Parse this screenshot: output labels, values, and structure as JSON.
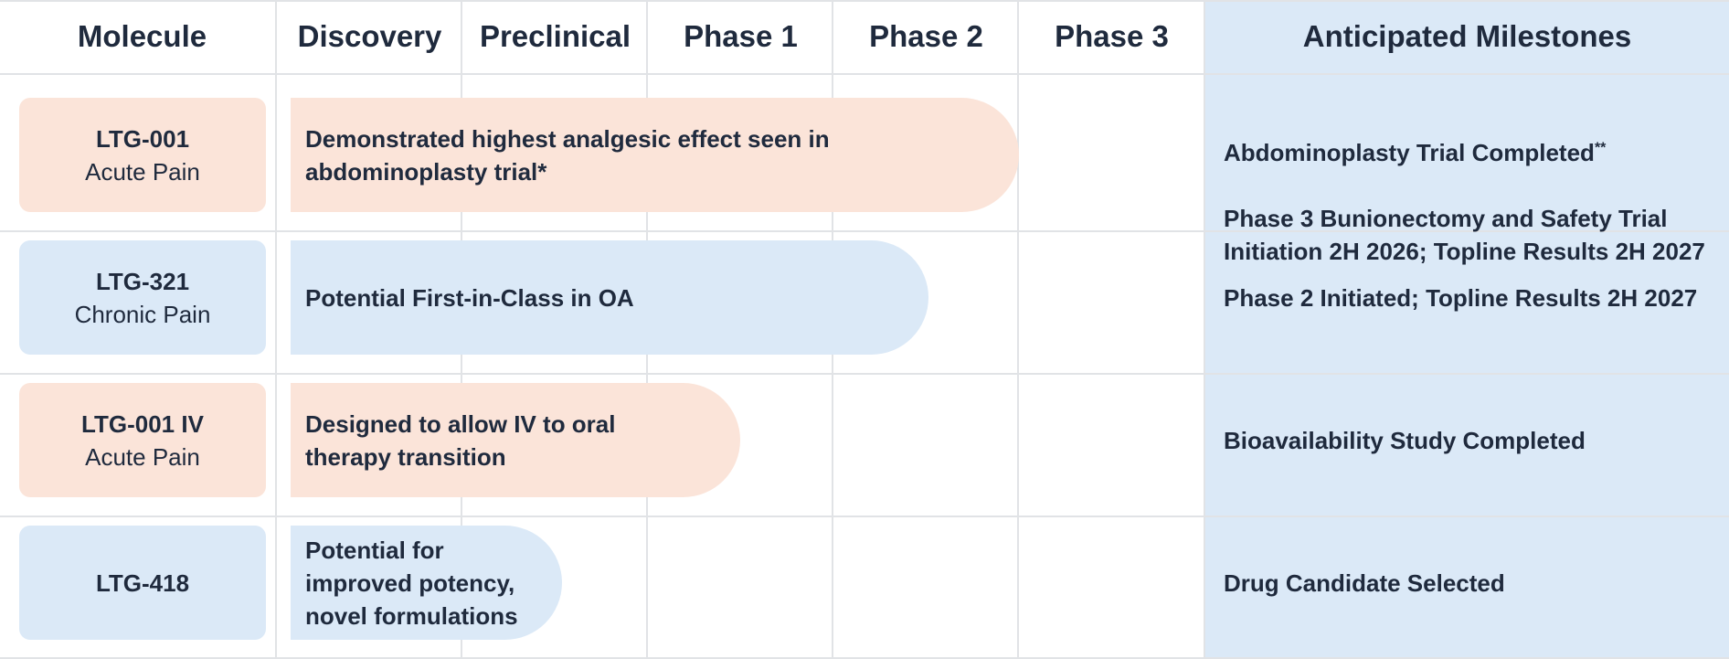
{
  "headers": {
    "molecule": "Molecule",
    "discovery": "Discovery",
    "preclinical": "Preclinical",
    "phase1": "Phase 1",
    "phase2": "Phase 2",
    "phase3": "Phase 3",
    "milestones": "Anticipated Milestones"
  },
  "colors": {
    "peach": "#fbe4d9",
    "blue": "#dbe9f7",
    "text": "#1f2a3d",
    "gridline": "#e1e3e6"
  },
  "rows": [
    {
      "name": "LTG-001",
      "indication": "Acute Pain",
      "color": "peach",
      "stage_reached": "Phase 2",
      "bar_text": "Demonstrated highest analgesic effect seen in\nabdominoplasty trial*",
      "milestone_line1": "Abdominoplasty Trial Completed",
      "milestone_line1_marker": "**",
      "milestone_rest": "Phase 3 Bunionectomy and Safety Trial\nInitiation 2H 2026; Topline Results 2H 2027"
    },
    {
      "name": "LTG-321",
      "indication": "Chronic Pain",
      "color": "blue",
      "stage_reached": "Phase 2",
      "bar_text": "Potential First-in-Class in OA",
      "milestone": "Phase 2 Initiated; Topline Results 2H 2027"
    },
    {
      "name": "LTG-001 IV",
      "indication": "Acute Pain",
      "color": "peach",
      "stage_reached": "Phase 1",
      "bar_text": "Designed to allow IV to oral\ntherapy transition",
      "milestone": "Bioavailability Study Completed"
    },
    {
      "name": "LTG-418",
      "indication": "",
      "color": "blue",
      "stage_reached": "Preclinical",
      "bar_text": "Potential for\nimproved potency,\nnovel formulations",
      "milestone": "Drug Candidate Selected"
    }
  ]
}
